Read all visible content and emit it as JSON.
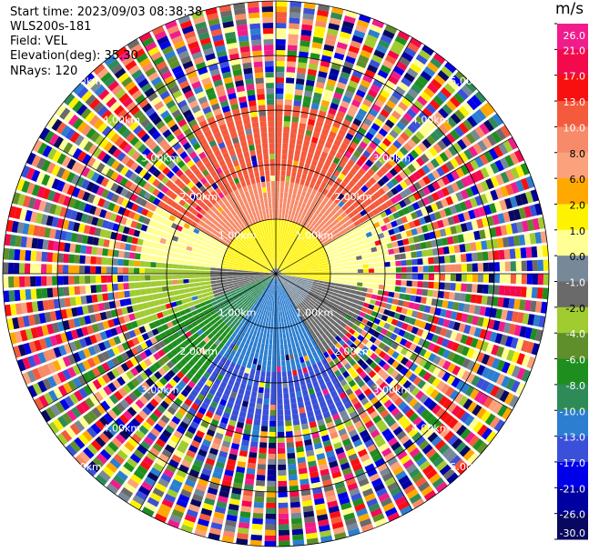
{
  "header": {
    "start_time": "Start time: 2023/09/03 08:38:38",
    "instrument": "WLS200s-181",
    "field": "Field: VEL",
    "elevation": "Elevation(deg): 35.30",
    "nrays": "NRays: 120"
  },
  "colorbar": {
    "unit": "m/s",
    "ticks": [
      "26.0",
      "21.0",
      "17.0",
      "13.0",
      "10.0",
      "8.0",
      "6.0",
      "2.0",
      "1.0",
      "0.0",
      "-1.0",
      "-2.0",
      "-4.0",
      "-6.0",
      "-8.0",
      "-10.0",
      "-13.0",
      "-17.0",
      "-21.0",
      "-26.0",
      "-30.0"
    ],
    "segments": [
      {
        "color": "#f01c8c",
        "dark": true
      },
      {
        "color": "#f20a4d",
        "dark": true
      },
      {
        "color": "#f81010",
        "dark": true
      },
      {
        "color": "#f45a3c",
        "dark": true
      },
      {
        "color": "#f78a68",
        "dark": true
      },
      {
        "color": "#fba27c",
        "dark": false
      },
      {
        "color": "#ffa800",
        "dark": false
      },
      {
        "color": "#fff200",
        "dark": false
      },
      {
        "color": "#ffff94",
        "dark": false
      },
      {
        "color": "#778899",
        "dark": false
      },
      {
        "color": "#6a6a6a",
        "dark": true
      },
      {
        "color": "#a0cc30",
        "dark": false
      },
      {
        "color": "#5f8f2a",
        "dark": true
      },
      {
        "color": "#1e8f1e",
        "dark": true
      },
      {
        "color": "#2e8b57",
        "dark": true
      },
      {
        "color": "#2b7ed0",
        "dark": true
      },
      {
        "color": "#3a50d8",
        "dark": true
      },
      {
        "color": "#0000e8",
        "dark": true
      },
      {
        "color": "#0000a0",
        "dark": true
      },
      {
        "color": "#080860",
        "dark": true
      }
    ]
  },
  "ppi": {
    "range_rings": [
      {
        "label": "1.00km"
      },
      {
        "label": "2.00km"
      },
      {
        "label": "3.00km"
      },
      {
        "label": "4.00km"
      },
      {
        "label": "5.00km"
      }
    ]
  }
}
